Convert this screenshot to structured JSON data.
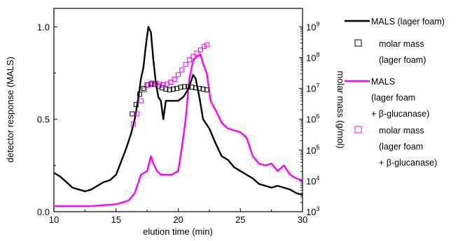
{
  "chart_data": {
    "type": "line",
    "xlabel": "elution time (min)",
    "ylabel_left": "detector response (MALS)",
    "ylabel_right": "molar mass (g/mol)",
    "xlim": [
      10,
      30
    ],
    "ylim_left": [
      0,
      1.1
    ],
    "ylim_right_log10": [
      3,
      9.6
    ],
    "x_ticks": [
      "10",
      "15",
      "20",
      "25",
      "30"
    ],
    "y_left_ticks": [
      "0.0",
      "0.5",
      "1.0"
    ],
    "y_right_ticks": [
      {
        "base": "10",
        "exp": "3"
      },
      {
        "base": "10",
        "exp": "4"
      },
      {
        "base": "10",
        "exp": "5"
      },
      {
        "base": "10",
        "exp": "6"
      },
      {
        "base": "10",
        "exp": "7"
      },
      {
        "base": "10",
        "exp": "8"
      },
      {
        "base": "10",
        "exp": "9"
      }
    ],
    "legend_position": "right, outside plot",
    "series": [
      {
        "name": "MALS (lager foam)",
        "legend_lines": [
          "MALS (lager foam)"
        ],
        "axis": "left",
        "style": "line",
        "color": "#000000",
        "x": [
          10.0,
          10.5,
          11.0,
          11.5,
          12.0,
          12.5,
          13.0,
          13.5,
          14.0,
          14.5,
          15.0,
          15.4,
          15.8,
          16.2,
          16.5,
          16.8,
          17.0,
          17.2,
          17.4,
          17.6,
          17.8,
          18.0,
          18.2,
          18.4,
          18.6,
          18.8,
          19.0,
          19.3,
          19.6,
          20.0,
          20.4,
          20.7,
          21.0,
          21.2,
          21.4,
          21.7,
          22.0,
          22.5,
          23.0,
          23.5,
          24.0,
          24.5,
          25.0,
          25.5,
          26.0,
          26.5,
          27.0,
          27.5,
          28.0,
          28.5,
          29.0,
          29.5,
          30.0
        ],
        "y": [
          0.21,
          0.19,
          0.16,
          0.13,
          0.12,
          0.11,
          0.12,
          0.14,
          0.16,
          0.17,
          0.2,
          0.27,
          0.34,
          0.42,
          0.5,
          0.62,
          0.72,
          0.78,
          0.9,
          1.0,
          0.97,
          0.82,
          0.7,
          0.62,
          0.6,
          0.5,
          0.6,
          0.6,
          0.6,
          0.6,
          0.62,
          0.65,
          0.7,
          0.74,
          0.72,
          0.62,
          0.5,
          0.45,
          0.37,
          0.3,
          0.28,
          0.24,
          0.22,
          0.2,
          0.18,
          0.15,
          0.14,
          0.13,
          0.14,
          0.13,
          0.12,
          0.1,
          0.09
        ]
      },
      {
        "name": "molar mass (lager foam)",
        "legend_lines": [
          "molar mass",
          "(lager foam)"
        ],
        "axis": "right",
        "style": "open-square",
        "color": "#000000",
        "x": [
          16.3,
          16.6,
          16.9,
          17.2,
          17.5,
          17.8,
          18.1,
          18.4,
          18.7,
          19.0,
          19.3,
          19.6,
          19.9,
          20.2,
          20.5,
          20.8,
          21.1,
          21.4,
          21.7,
          22.0,
          22.3
        ],
        "y": [
          1500000,
          3000000,
          6500000,
          10000000,
          13000000,
          14000000,
          13500000,
          12000000,
          10500000,
          9500000,
          9000000,
          9500000,
          10000000,
          11000000,
          11500000,
          11500000,
          11000000,
          10500000,
          10000000,
          9500000,
          9000000
        ]
      },
      {
        "name": "MALS (lager foam + β-glucanase)",
        "legend_lines": [
          "MALS",
          "(lager foam",
          "+ β-glucanase)"
        ],
        "axis": "left",
        "style": "line",
        "color": "#ff00ff",
        "x": [
          10.0,
          11.0,
          12.0,
          13.0,
          14.0,
          15.0,
          15.5,
          16.0,
          16.5,
          17.0,
          17.5,
          17.8,
          18.0,
          18.3,
          18.6,
          19.0,
          19.5,
          20.0,
          20.3,
          20.6,
          20.9,
          21.2,
          21.5,
          21.8,
          22.0,
          22.3,
          22.6,
          23.0,
          23.5,
          24.0,
          24.5,
          25.0,
          25.5,
          26.0,
          26.5,
          27.0,
          27.5,
          28.0,
          28.5,
          29.0,
          29.5,
          30.0
        ],
        "y": [
          0.03,
          0.03,
          0.03,
          0.03,
          0.035,
          0.04,
          0.05,
          0.06,
          0.1,
          0.2,
          0.22,
          0.3,
          0.26,
          0.22,
          0.2,
          0.2,
          0.2,
          0.22,
          0.35,
          0.5,
          0.72,
          0.82,
          0.84,
          0.85,
          0.8,
          0.75,
          0.6,
          0.55,
          0.48,
          0.45,
          0.44,
          0.43,
          0.4,
          0.3,
          0.26,
          0.25,
          0.26,
          0.22,
          0.25,
          0.2,
          0.18,
          0.17
        ]
      },
      {
        "name": "molar mass (lager foam + β-glucanase)",
        "legend_lines": [
          "molar mass",
          "(lager foam",
          "+ β-glucanase)"
        ],
        "axis": "right",
        "style": "open-square",
        "color": "#ff00ff",
        "x": [
          16.4,
          16.7,
          17.0,
          17.3,
          17.6,
          17.9,
          18.2,
          18.5,
          18.8,
          19.1,
          19.4,
          19.7,
          20.0,
          20.3,
          20.6,
          20.9,
          21.2,
          21.5,
          21.8,
          22.1,
          22.3
        ],
        "y": [
          700000,
          1500000,
          4000000,
          9000000,
          13000000,
          15000000,
          15000000,
          14000000,
          13000000,
          14000000,
          16000000,
          20000000,
          28000000,
          40000000,
          60000000,
          85000000,
          110000000,
          140000000,
          180000000,
          230000000,
          260000000
        ]
      }
    ]
  }
}
